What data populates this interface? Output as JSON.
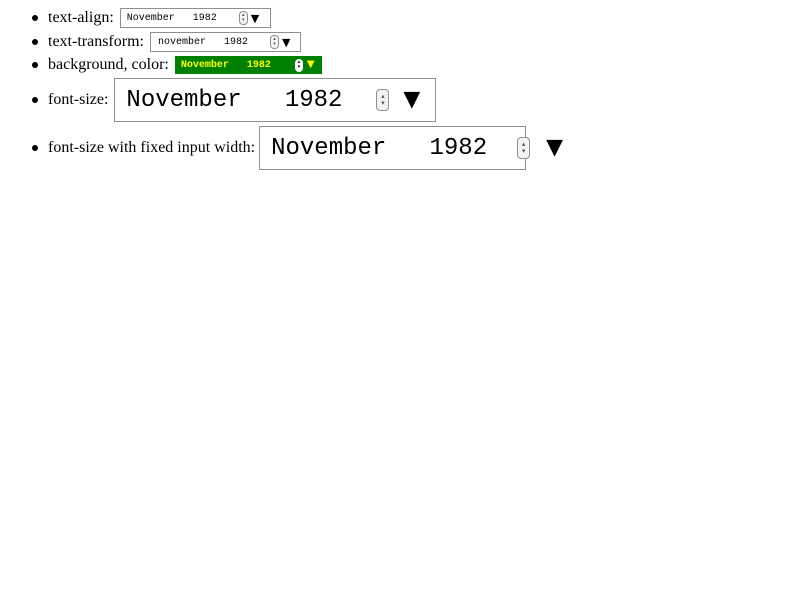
{
  "rows": [
    {
      "label": "text-align:",
      "value": "November   1982"
    },
    {
      "label": "text-transform:",
      "value": "november   1982"
    },
    {
      "label": "background, color:",
      "value": "November   1982"
    },
    {
      "label": "font-size:",
      "value": "November   1982"
    },
    {
      "label": "font-size with fixed input width:",
      "value": "November   1982"
    }
  ],
  "icons": {
    "spinner_up": "▴",
    "spinner_down": "▾",
    "picker": "▼"
  },
  "colors": {
    "highlight_background": "#008000",
    "highlight_text": "#ffff00"
  }
}
